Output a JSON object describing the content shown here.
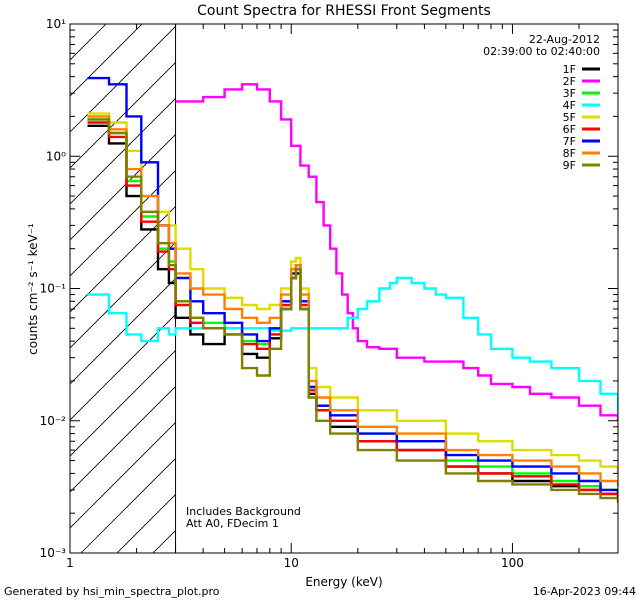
{
  "chart_data": {
    "type": "line",
    "title": "Count Spectra for RHESSI Front Segments",
    "xlabel": "Energy (keV)",
    "ylabel": "counts cm⁻² s⁻¹ keV⁻¹",
    "xscale": "log",
    "yscale": "log",
    "xlim": [
      1,
      300
    ],
    "ylim": [
      0.001,
      10
    ],
    "xticks": [
      {
        "value": 1,
        "label": "1"
      },
      {
        "value": 10,
        "label": "10"
      },
      {
        "value": 100,
        "label": "100"
      }
    ],
    "yticks": [
      {
        "value": 0.001,
        "label": "10⁻³"
      },
      {
        "value": 0.01,
        "label": "10⁻²"
      },
      {
        "value": 0.1,
        "label": "10⁻¹"
      },
      {
        "value": 1,
        "label": "10⁰"
      },
      {
        "value": 10,
        "label": "10¹"
      }
    ],
    "date": "22-Aug-2012",
    "time_range": "02:39:00 to 02:40:00",
    "annotations": [
      "Includes Background",
      "Att A0, FDecim 1"
    ],
    "hatched_region_xmax": 3,
    "footer_left": "Generated by hsi_min_spectra_plot.pro",
    "footer_right": "16-Apr-2023 09:44",
    "series": [
      {
        "name": "1F",
        "color": "#000000",
        "x": [
          1.2,
          1.5,
          1.8,
          2.1,
          2.5,
          2.8,
          3,
          3.5,
          4,
          5,
          6,
          7,
          8,
          9,
          10,
          10.5,
          11,
          12,
          13,
          15,
          20,
          30,
          50,
          70,
          100,
          150,
          200,
          250,
          300
        ],
        "y": [
          1.7,
          1.25,
          0.5,
          0.28,
          0.14,
          0.11,
          0.06,
          0.045,
          0.038,
          0.05,
          0.032,
          0.03,
          0.042,
          0.07,
          0.12,
          0.13,
          0.07,
          0.016,
          0.012,
          0.009,
          0.007,
          0.006,
          0.0045,
          0.004,
          0.0035,
          0.0032,
          0.003,
          0.0028,
          0.0026
        ]
      },
      {
        "name": "2F",
        "color": "#ff00ff",
        "x": [
          3,
          4,
          5,
          6,
          7,
          8,
          9,
          10,
          11,
          12,
          13,
          14,
          15,
          16,
          17,
          18,
          19,
          20,
          22,
          25,
          30,
          35,
          40,
          50,
          60,
          70,
          80,
          100,
          120,
          150,
          200,
          250,
          300
        ],
        "y": [
          2.6,
          2.8,
          3.2,
          3.5,
          3.2,
          2.6,
          1.9,
          1.2,
          0.85,
          0.7,
          0.45,
          0.3,
          0.2,
          0.13,
          0.09,
          0.065,
          0.05,
          0.04,
          0.036,
          0.035,
          0.03,
          0.03,
          0.028,
          0.028,
          0.025,
          0.022,
          0.019,
          0.018,
          0.016,
          0.015,
          0.013,
          0.011,
          0.01
        ]
      },
      {
        "name": "3F",
        "color": "#00ff00",
        "x": [
          1.2,
          1.5,
          1.8,
          2.1,
          2.5,
          2.8,
          3,
          3.5,
          4,
          5,
          6,
          7,
          8,
          9,
          10,
          10.5,
          11,
          12,
          13,
          15,
          20,
          30,
          50,
          70,
          100,
          150,
          200,
          250,
          300
        ],
        "y": [
          1.9,
          1.5,
          0.65,
          0.35,
          0.2,
          0.16,
          0.08,
          0.06,
          0.055,
          0.05,
          0.04,
          0.038,
          0.045,
          0.08,
          0.13,
          0.15,
          0.08,
          0.018,
          0.013,
          0.01,
          0.008,
          0.007,
          0.005,
          0.0045,
          0.004,
          0.0035,
          0.0032,
          0.003,
          0.0028
        ]
      },
      {
        "name": "4F",
        "color": "#00ffff",
        "x": [
          1.2,
          1.5,
          1.8,
          2.1,
          2.5,
          2.8,
          3,
          4,
          6,
          8,
          10,
          12,
          15,
          18,
          20,
          22,
          25,
          28,
          30,
          35,
          40,
          45,
          50,
          60,
          70,
          80,
          100,
          120,
          150,
          200,
          250,
          300
        ],
        "y": [
          0.09,
          0.065,
          0.045,
          0.04,
          0.05,
          0.045,
          0.05,
          0.05,
          0.05,
          0.048,
          0.05,
          0.05,
          0.05,
          0.06,
          0.07,
          0.08,
          0.1,
          0.11,
          0.12,
          0.11,
          0.1,
          0.09,
          0.085,
          0.06,
          0.045,
          0.035,
          0.03,
          0.028,
          0.025,
          0.02,
          0.016,
          0.011
        ]
      },
      {
        "name": "5F",
        "color": "#dddd00",
        "x": [
          1.2,
          1.5,
          1.8,
          2.1,
          2.5,
          2.8,
          3,
          3.5,
          4,
          5,
          6,
          7,
          8,
          9,
          10,
          10.5,
          11,
          12,
          13,
          15,
          20,
          30,
          50,
          70,
          100,
          150,
          200,
          250,
          300
        ],
        "y": [
          2.1,
          1.8,
          1.1,
          0.5,
          0.38,
          0.3,
          0.2,
          0.14,
          0.1,
          0.085,
          0.075,
          0.07,
          0.075,
          0.1,
          0.16,
          0.17,
          0.1,
          0.025,
          0.018,
          0.015,
          0.012,
          0.01,
          0.008,
          0.007,
          0.006,
          0.0055,
          0.005,
          0.0045,
          0.004
        ]
      },
      {
        "name": "6F",
        "color": "#ff0000",
        "x": [
          1.2,
          1.5,
          1.8,
          2.1,
          2.5,
          2.8,
          3,
          3.5,
          4,
          5,
          6,
          7,
          8,
          9,
          10,
          10.5,
          11,
          12,
          13,
          15,
          20,
          30,
          50,
          70,
          100,
          150,
          200,
          250,
          300
        ],
        "y": [
          1.8,
          1.4,
          0.6,
          0.32,
          0.19,
          0.14,
          0.075,
          0.055,
          0.05,
          0.045,
          0.038,
          0.035,
          0.045,
          0.075,
          0.12,
          0.14,
          0.075,
          0.017,
          0.012,
          0.01,
          0.007,
          0.006,
          0.0045,
          0.004,
          0.0038,
          0.0033,
          0.003,
          0.0028,
          0.0026
        ]
      },
      {
        "name": "7F",
        "color": "#0000ff",
        "x": [
          1.2,
          1.5,
          1.8,
          2.1,
          2.5,
          2.8,
          3,
          3.5,
          4,
          5,
          6,
          7,
          8,
          9,
          10,
          10.5,
          11,
          12,
          13,
          15,
          20,
          30,
          50,
          70,
          100,
          150,
          200,
          250,
          300
        ],
        "y": [
          3.9,
          3.5,
          2.0,
          0.9,
          0.3,
          0.2,
          0.12,
          0.08,
          0.065,
          0.055,
          0.045,
          0.04,
          0.05,
          0.08,
          0.13,
          0.15,
          0.08,
          0.018,
          0.013,
          0.011,
          0.008,
          0.007,
          0.0055,
          0.005,
          0.0045,
          0.004,
          0.0035,
          0.003,
          0.0028
        ]
      },
      {
        "name": "8F",
        "color": "#ff8000",
        "x": [
          1.2,
          1.5,
          1.8,
          2.1,
          2.5,
          2.8,
          3,
          3.5,
          4,
          5,
          6,
          7,
          8,
          9,
          10,
          10.5,
          11,
          12,
          13,
          15,
          20,
          30,
          50,
          70,
          100,
          150,
          200,
          250,
          300
        ],
        "y": [
          2.0,
          1.6,
          0.8,
          0.5,
          0.3,
          0.22,
          0.13,
          0.1,
          0.09,
          0.07,
          0.06,
          0.055,
          0.06,
          0.09,
          0.14,
          0.15,
          0.09,
          0.02,
          0.015,
          0.012,
          0.009,
          0.008,
          0.006,
          0.0055,
          0.005,
          0.0045,
          0.004,
          0.0035,
          0.0032
        ]
      },
      {
        "name": "9F",
        "color": "#808000",
        "x": [
          1.2,
          1.5,
          1.8,
          2.1,
          2.5,
          2.8,
          3,
          3.5,
          4,
          5,
          6,
          7,
          8,
          9,
          10,
          10.5,
          11,
          12,
          13,
          15,
          20,
          30,
          50,
          70,
          100,
          150,
          200,
          250,
          300
        ],
        "y": [
          1.9,
          1.5,
          0.7,
          0.38,
          0.22,
          0.15,
          0.08,
          0.06,
          0.05,
          0.045,
          0.025,
          0.022,
          0.035,
          0.07,
          0.12,
          0.14,
          0.07,
          0.015,
          0.01,
          0.008,
          0.006,
          0.005,
          0.004,
          0.0035,
          0.0033,
          0.003,
          0.0028,
          0.0026,
          0.0024
        ]
      }
    ]
  }
}
